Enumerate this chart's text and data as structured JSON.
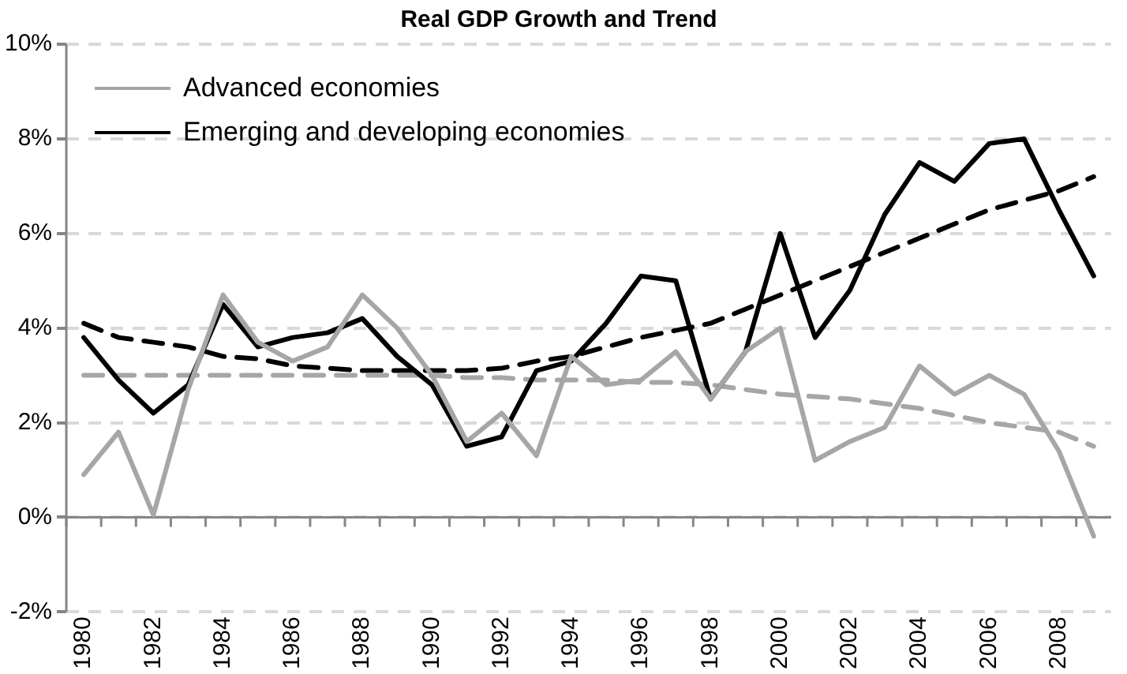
{
  "chart_data": {
    "type": "line",
    "title": "Real GDP Growth and Trend",
    "categories": [
      "1980",
      null,
      "1982",
      null,
      "1984",
      null,
      "1986",
      null,
      "1988",
      null,
      "1990",
      null,
      "1992",
      null,
      "1994",
      null,
      "1996",
      null,
      "1998",
      null,
      "2000",
      null,
      "2002",
      null,
      "2004",
      null,
      "2006",
      null,
      "2008",
      null
    ],
    "series": [
      {
        "name": "Advanced economies",
        "color": "#a6a6a6",
        "line_style": "solid",
        "values": [
          0.9,
          1.8,
          0.05,
          2.7,
          4.7,
          3.7,
          3.3,
          3.6,
          4.7,
          4.0,
          3.0,
          1.6,
          2.2,
          1.3,
          3.4,
          2.8,
          2.9,
          3.5,
          2.5,
          3.5,
          4.0,
          1.2,
          1.6,
          1.9,
          3.2,
          2.6,
          3.0,
          2.6,
          1.4,
          -0.4
        ]
      },
      {
        "name": "Emerging and developing economies",
        "color": "#000000",
        "line_style": "solid",
        "values": [
          3.8,
          2.9,
          2.2,
          2.8,
          4.5,
          3.6,
          3.8,
          3.9,
          4.2,
          3.4,
          2.8,
          1.5,
          1.7,
          3.1,
          3.3,
          4.1,
          5.1,
          5.0,
          2.5,
          3.5,
          6.0,
          3.8,
          4.8,
          6.4,
          7.5,
          7.1,
          7.9,
          8.0,
          6.5,
          5.1
        ]
      },
      {
        "color": "#a6a6a6",
        "line_style": "dashed",
        "values": [
          3.0,
          3.0,
          3.0,
          3.0,
          3.0,
          3.0,
          3.0,
          3.0,
          3.0,
          3.0,
          3.0,
          2.95,
          2.95,
          2.9,
          2.9,
          2.9,
          2.85,
          2.85,
          2.8,
          2.7,
          2.6,
          2.55,
          2.5,
          2.4,
          2.3,
          2.15,
          2.0,
          1.9,
          1.8,
          1.5
        ]
      },
      {
        "color": "#000000",
        "line_style": "dashed",
        "values": [
          4.1,
          3.8,
          3.7,
          3.6,
          3.4,
          3.35,
          3.2,
          3.15,
          3.1,
          3.1,
          3.1,
          3.1,
          3.15,
          3.3,
          3.4,
          3.6,
          3.8,
          3.95,
          4.1,
          4.4,
          4.7,
          5.0,
          5.3,
          5.6,
          5.9,
          6.2,
          6.5,
          6.7,
          6.9,
          7.2
        ]
      }
    ],
    "ylim": [
      -2,
      10
    ],
    "yticks": [
      {
        "value": -2,
        "label": "-2%"
      },
      {
        "value": 0,
        "label": "0%"
      },
      {
        "value": 2,
        "label": "2%"
      },
      {
        "value": 4,
        "label": "4%"
      },
      {
        "value": 6,
        "label": "6%"
      },
      {
        "value": 8,
        "label": "8%"
      },
      {
        "value": 10,
        "label": "10%"
      }
    ],
    "grid": "y",
    "legend": "top left",
    "marker": "none"
  }
}
